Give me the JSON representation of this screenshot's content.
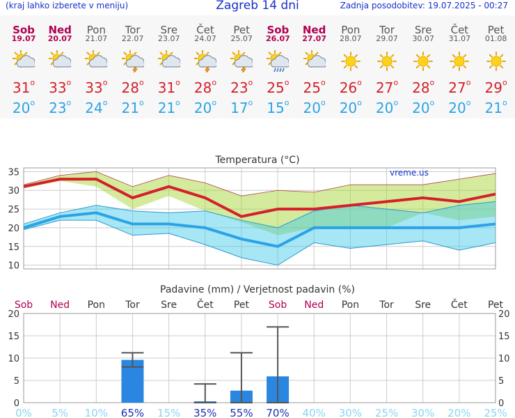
{
  "header": {
    "left_note": "(kraj lahko izberete v meniju)",
    "title": "Zagreb 14 dni",
    "updated": "Zadnja posodobitev: 19.07.2025 - 00:27"
  },
  "days": [
    {
      "name": "Sob",
      "date": "19.07",
      "weekend": true,
      "icon": "sun-cloud-icon",
      "tmax": "31",
      "tmin": "20"
    },
    {
      "name": "Ned",
      "date": "20.07",
      "weekend": true,
      "icon": "sun-cloud-icon",
      "tmax": "33",
      "tmin": "23"
    },
    {
      "name": "Pon",
      "date": "21.07",
      "weekend": false,
      "icon": "sun-cloud-icon",
      "tmax": "33",
      "tmin": "24"
    },
    {
      "name": "Tor",
      "date": "22.07",
      "weekend": false,
      "icon": "sun-thunderstorm-icon",
      "tmax": "28",
      "tmin": "21"
    },
    {
      "name": "Sre",
      "date": "23.07",
      "weekend": false,
      "icon": "sun-cloud-icon",
      "tmax": "31",
      "tmin": "21"
    },
    {
      "name": "Čet",
      "date": "24.07",
      "weekend": false,
      "icon": "sun-thunderstorm-icon",
      "tmax": "28",
      "tmin": "20"
    },
    {
      "name": "Pet",
      "date": "25.07",
      "weekend": false,
      "icon": "sun-thunderstorm-icon",
      "tmax": "23",
      "tmin": "17"
    },
    {
      "name": "Sob",
      "date": "26.07",
      "weekend": true,
      "icon": "sun-rain-icon",
      "tmax": "25",
      "tmin": "15"
    },
    {
      "name": "Ned",
      "date": "27.07",
      "weekend": true,
      "icon": "sun-cloud-icon",
      "tmax": "25",
      "tmin": "20"
    },
    {
      "name": "Pon",
      "date": "28.07",
      "weekend": false,
      "icon": "sun-icon",
      "tmax": "26",
      "tmin": "20"
    },
    {
      "name": "Tor",
      "date": "29.07",
      "weekend": false,
      "icon": "sun-icon",
      "tmax": "27",
      "tmin": "20"
    },
    {
      "name": "Sre",
      "date": "30.07",
      "weekend": false,
      "icon": "sun-icon",
      "tmax": "28",
      "tmin": "20"
    },
    {
      "name": "Čet",
      "date": "31.07",
      "weekend": false,
      "icon": "sun-icon",
      "tmax": "27",
      "tmin": "20"
    },
    {
      "name": "Pet",
      "date": "01.08",
      "weekend": false,
      "icon": "sun-icon",
      "tmax": "29",
      "tmin": "21"
    }
  ],
  "degree_symbol": "o",
  "colors": {
    "max": "#d4202a",
    "min": "#2aa3e6",
    "weekend": "#b0004f",
    "bar": "#2a86e0"
  },
  "chart_data": [
    {
      "type": "line",
      "title": "Temperatura (°C)",
      "watermark": "vreme.us",
      "ylim": [
        9,
        36
      ],
      "yticks": [
        10,
        15,
        20,
        25,
        30,
        35
      ],
      "series": [
        {
          "values": [
            31,
            33,
            33,
            28,
            31,
            28,
            23,
            25,
            25,
            26,
            27,
            28,
            27,
            29
          ]
        },
        {
          "values": [
            20,
            23,
            24,
            21,
            21,
            20,
            17,
            15,
            20,
            20,
            20,
            20,
            20,
            21
          ]
        }
      ],
      "max_band_upper": [
        31.5,
        34,
        35,
        31,
        34,
        32,
        28.5,
        30,
        29.5,
        31.5,
        31.5,
        31.5,
        33,
        34.5
      ],
      "max_band_lower": [
        30.5,
        32.5,
        31,
        25,
        28.5,
        24.5,
        21.5,
        18,
        20,
        20,
        20,
        24,
        22,
        23
      ],
      "min_band_upper": [
        21,
        24,
        26,
        24.5,
        24,
        24.5,
        22,
        20,
        24.5,
        26,
        25,
        24,
        26,
        27
      ],
      "min_band_lower": [
        19.5,
        22,
        22,
        18,
        18.5,
        15.5,
        12,
        10,
        16,
        14.5,
        15.5,
        16.5,
        14,
        16
      ]
    },
    {
      "type": "bar",
      "title": "Padavine (mm) / Verjetnost padavin (%)",
      "categories": [
        "Sob",
        "Ned",
        "Pon",
        "Tor",
        "Sre",
        "Čet",
        "Pet",
        "Sob",
        "Ned",
        "Pon",
        "Tor",
        "Sre",
        "Čet",
        "Pet"
      ],
      "values": [
        0,
        0,
        0,
        9.6,
        0,
        0.3,
        2.7,
        5.9,
        0,
        0,
        0,
        0,
        0,
        0
      ],
      "error_high": [
        0,
        0,
        0,
        11.2,
        0,
        4.2,
        11.2,
        17,
        0,
        0,
        0,
        0,
        0,
        0
      ],
      "error_low": [
        0,
        0,
        0,
        8,
        0,
        0,
        0,
        0,
        0,
        0,
        0,
        0,
        0,
        0
      ],
      "probability": [
        "0%",
        "5%",
        "10%",
        "65%",
        "15%",
        "35%",
        "55%",
        "70%",
        "40%",
        "30%",
        "25%",
        "30%",
        "20%",
        "25%"
      ],
      "probability_highlight": [
        false,
        false,
        false,
        true,
        false,
        true,
        true,
        true,
        false,
        false,
        false,
        false,
        false,
        false
      ],
      "ylim": [
        0,
        20
      ],
      "yticks": [
        0,
        5,
        10,
        15,
        20
      ],
      "weekend": [
        true,
        true,
        false,
        false,
        false,
        false,
        false,
        true,
        true,
        false,
        false,
        false,
        false,
        false
      ]
    }
  ]
}
